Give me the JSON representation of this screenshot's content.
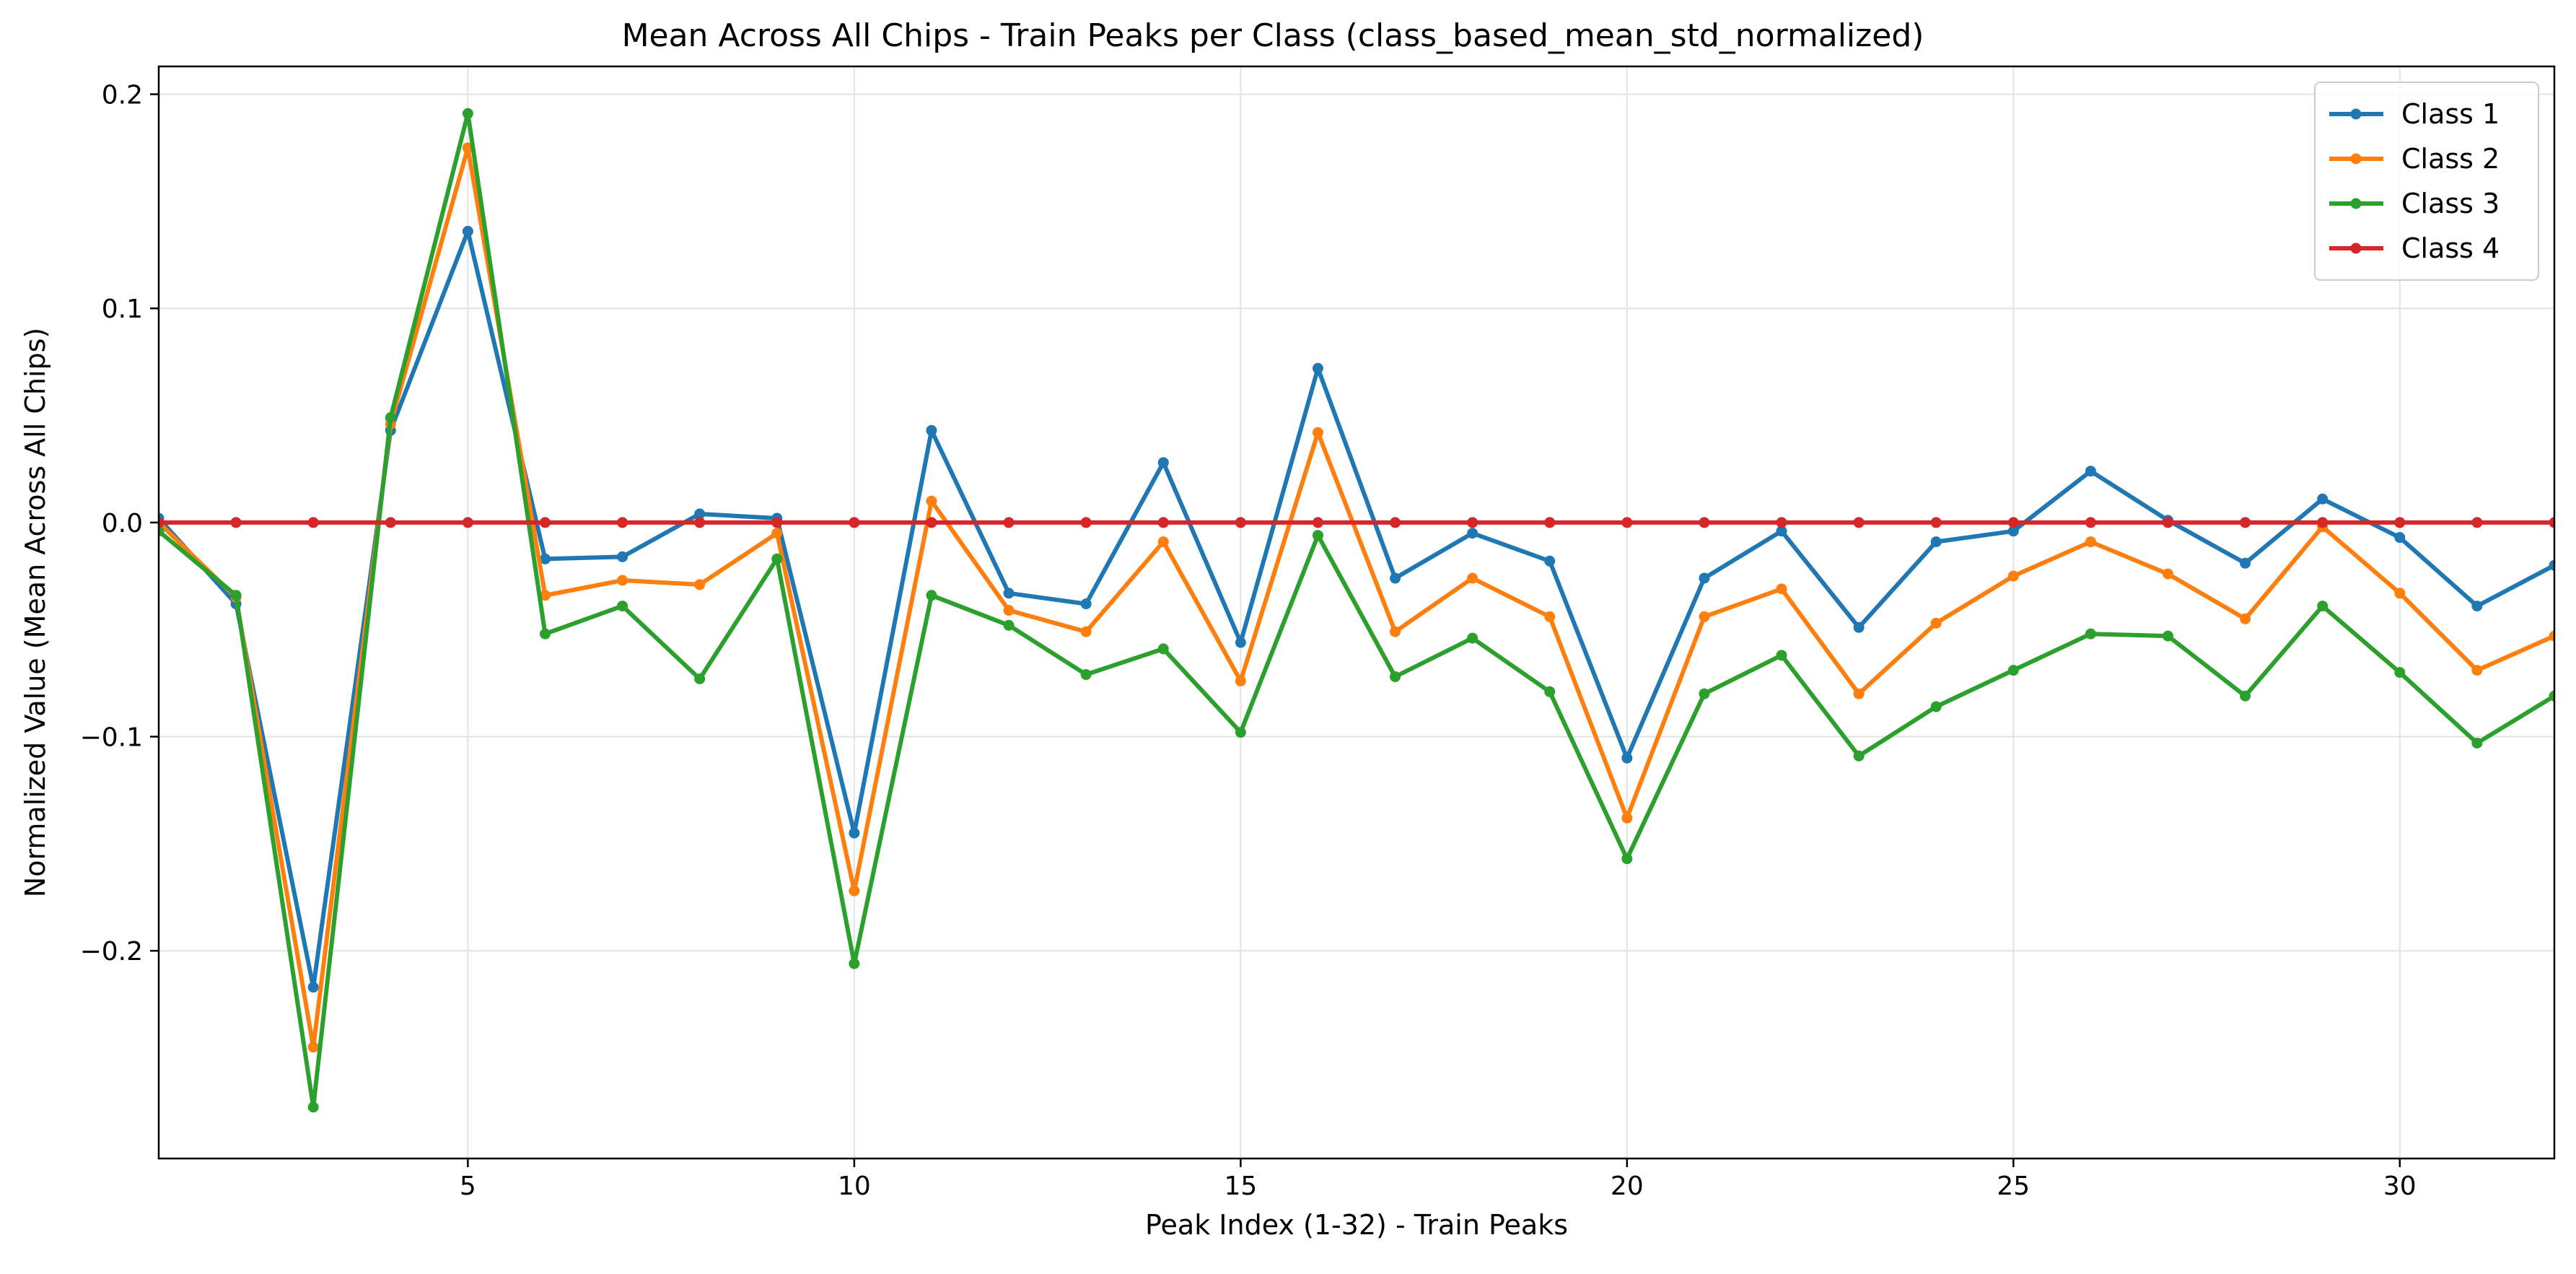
{
  "chart_data": {
    "type": "line",
    "title": "Mean Across All Chips - Train Peaks per Class (class_based_mean_std_normalized)",
    "xlabel": "Peak Index (1-32) - Train Peaks",
    "ylabel": "Normalized Value (Mean Across All Chips)",
    "xlim": [
      1,
      32
    ],
    "ylim": [
      -0.297,
      0.213
    ],
    "xticks": [
      5,
      10,
      15,
      20,
      25,
      30
    ],
    "yticks": [
      -0.2,
      -0.1,
      0.0,
      0.1,
      0.2
    ],
    "xtick_labels": [
      "5",
      "10",
      "15",
      "20",
      "25",
      "30"
    ],
    "ytick_labels": [
      "−0.2",
      "−0.1",
      "0.0",
      "0.1",
      "0.2"
    ],
    "grid": true,
    "legend_position": "top-right",
    "x": [
      1,
      2,
      3,
      4,
      5,
      6,
      7,
      8,
      9,
      10,
      11,
      12,
      13,
      14,
      15,
      16,
      17,
      18,
      19,
      20,
      21,
      22,
      23,
      24,
      25,
      26,
      27,
      28,
      29,
      30,
      31,
      32
    ],
    "series": [
      {
        "name": "Class 1",
        "color": "#1f77b4",
        "values": [
          0.002,
          -0.038,
          -0.217,
          0.043,
          0.136,
          -0.017,
          -0.016,
          0.004,
          0.002,
          -0.145,
          0.043,
          -0.033,
          -0.038,
          0.028,
          -0.056,
          0.072,
          -0.026,
          -0.005,
          -0.018,
          -0.11,
          -0.026,
          -0.004,
          -0.049,
          -0.009,
          -0.004,
          0.024,
          0.001,
          -0.019,
          0.011,
          -0.007,
          -0.039,
          -0.02
        ]
      },
      {
        "name": "Class 2",
        "color": "#ff7f0e",
        "values": [
          0.0,
          -0.035,
          -0.245,
          0.046,
          0.175,
          -0.034,
          -0.027,
          -0.029,
          -0.005,
          -0.172,
          0.01,
          -0.041,
          -0.051,
          -0.009,
          -0.074,
          0.042,
          -0.051,
          -0.026,
          -0.044,
          -0.138,
          -0.044,
          -0.031,
          -0.08,
          -0.047,
          -0.025,
          -0.009,
          -0.024,
          -0.045,
          -0.002,
          -0.033,
          -0.069,
          -0.053
        ]
      },
      {
        "name": "Class 3",
        "color": "#2ca02c",
        "values": [
          -0.004,
          -0.034,
          -0.273,
          0.049,
          0.191,
          -0.052,
          -0.039,
          -0.073,
          -0.017,
          -0.206,
          -0.034,
          -0.048,
          -0.071,
          -0.059,
          -0.098,
          -0.006,
          -0.072,
          -0.054,
          -0.079,
          -0.157,
          -0.08,
          -0.062,
          -0.109,
          -0.086,
          -0.069,
          -0.052,
          -0.053,
          -0.081,
          -0.039,
          -0.07,
          -0.103,
          -0.081
        ]
      },
      {
        "name": "Class 4",
        "color": "#d62728",
        "values": [
          0,
          0,
          0,
          0,
          0,
          0,
          0,
          0,
          0,
          0,
          0,
          0,
          0,
          0,
          0,
          0,
          0,
          0,
          0,
          0,
          0,
          0,
          0,
          0,
          0,
          0,
          0,
          0,
          0,
          0,
          0,
          0
        ]
      }
    ]
  }
}
